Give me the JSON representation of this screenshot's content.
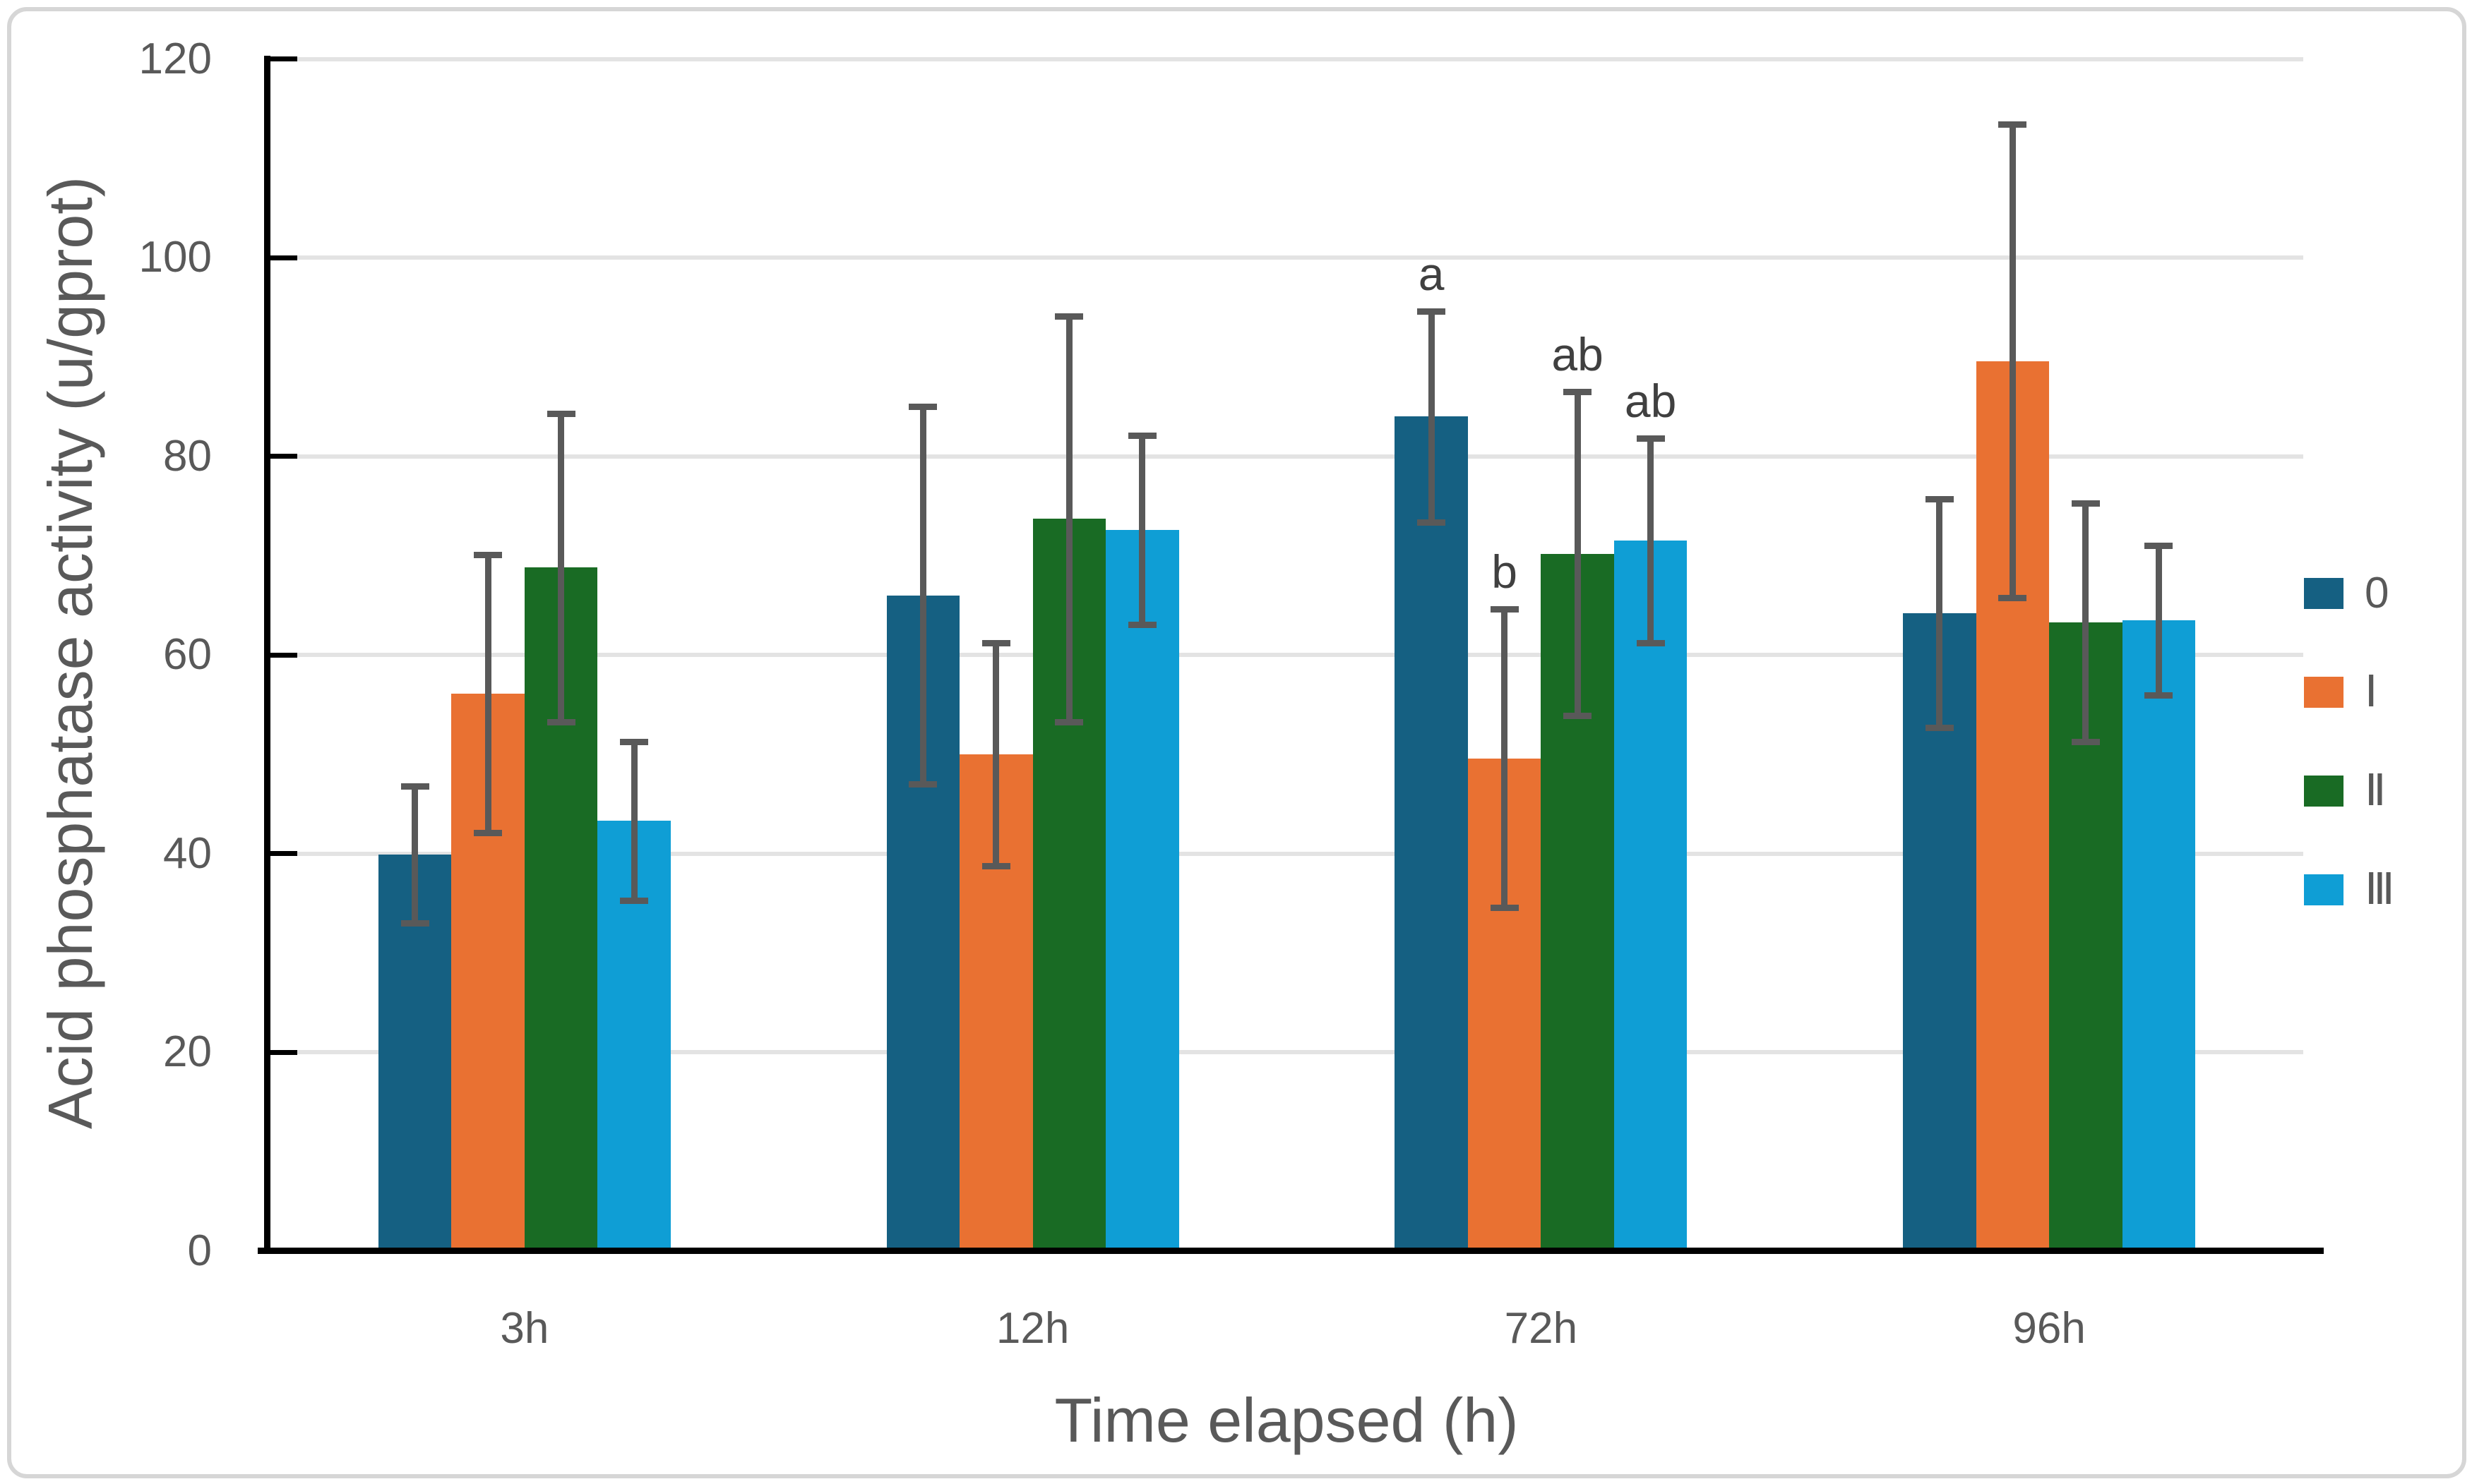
{
  "chart_data": {
    "type": "bar",
    "title": "",
    "xlabel": "Time elapsed (h)",
    "ylabel": "Acid phosphatase activity (u/gprot)",
    "categories": [
      "3h",
      "12h",
      "72h",
      "96h"
    ],
    "series": [
      {
        "name": "0",
        "color": "#156082",
        "values": [
          39.9,
          66.0,
          84.0,
          64.2
        ],
        "errors": [
          6.9,
          19.0,
          10.6,
          11.5
        ]
      },
      {
        "name": "Ⅰ",
        "color": "#E97132",
        "values": [
          56.1,
          50.0,
          49.6,
          89.6
        ],
        "errors": [
          14.0,
          11.2,
          15.0,
          23.8
        ]
      },
      {
        "name": "Ⅱ",
        "color": "#196B24",
        "values": [
          68.8,
          73.7,
          70.2,
          63.3
        ],
        "errors": [
          15.5,
          20.4,
          16.3,
          12.0
        ]
      },
      {
        "name": "Ⅲ",
        "color": "#0F9ED5",
        "values": [
          43.3,
          72.6,
          71.5,
          63.5
        ],
        "errors": [
          8.0,
          9.5,
          10.3,
          7.5
        ]
      }
    ],
    "annotations": [
      {
        "category_index": 2,
        "series_index": 0,
        "text": "a"
      },
      {
        "category_index": 2,
        "series_index": 1,
        "text": "b"
      },
      {
        "category_index": 2,
        "series_index": 2,
        "text": "ab"
      },
      {
        "category_index": 2,
        "series_index": 3,
        "text": "ab"
      }
    ],
    "ylim": [
      0,
      120
    ],
    "ytick_step": 20,
    "yticks": [
      "0",
      "20",
      "40",
      "60",
      "80",
      "100",
      "120"
    ],
    "grid": true,
    "legend_position": "right",
    "colors": {
      "error_bar": "#595959",
      "axis": "#000000",
      "gridline": "#E3E3E3",
      "tick_label": "#595959",
      "annotation": "#404040",
      "border": "#D6D6D6"
    }
  }
}
